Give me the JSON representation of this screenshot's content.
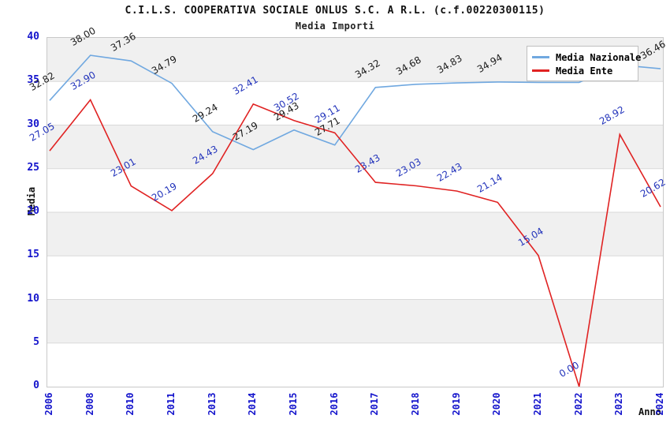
{
  "title": "C.I.L.S. COOPERATIVA SOCIALE ONLUS S.C. A R.L. (c.f.00220300115)",
  "subtitle": "Media Importi",
  "axes": {
    "x_label": "Anno",
    "y_label": "Media",
    "y_ticks": [
      0,
      5,
      10,
      15,
      20,
      25,
      30,
      35,
      40
    ],
    "ylim": [
      0,
      40
    ]
  },
  "colors": {
    "nazionale_line": "#70a8e0",
    "ente_line": "#e02222",
    "nazionale_value_label": "#1a1a1a",
    "ente_value_label": "#2233bb",
    "axis_tick_text": "#1414cc",
    "band_gray": "#f0f0f0",
    "grid_line": "#d9d9d9"
  },
  "chart_data": {
    "type": "line",
    "title": "C.I.L.S. COOPERATIVA SOCIALE ONLUS S.C. A R.L. (c.f.00220300115)",
    "subtitle": "Media Importi",
    "xlabel": "Anno",
    "ylabel": "Media",
    "ylim": [
      0,
      40
    ],
    "grid": true,
    "legend_position": "top-right",
    "categories": [
      "2006",
      "2008",
      "2010",
      "2011",
      "2013",
      "2014",
      "2015",
      "2016",
      "2017",
      "2018",
      "2019",
      "2020",
      "2021",
      "2022",
      "2023",
      "2024"
    ],
    "series": [
      {
        "name": "Media Nazionale",
        "color": "#70a8e0",
        "label_color": "#1a1a1a",
        "values": [
          32.82,
          38.0,
          37.36,
          34.79,
          29.24,
          27.19,
          29.43,
          27.71,
          34.32,
          34.68,
          34.83,
          34.94,
          34.9,
          34.9,
          36.9,
          36.46
        ],
        "labels": [
          "32.82",
          "38.00",
          "37.36",
          "34.79",
          "29.24",
          "27.19",
          "29.43",
          "27.71",
          "34.32",
          "34.68",
          "34.83",
          "34.94",
          null,
          null,
          null,
          "36.46"
        ]
      },
      {
        "name": "Media Ente",
        "color": "#e02222",
        "label_color": "#2233bb",
        "values": [
          27.05,
          32.9,
          23.01,
          20.19,
          24.43,
          32.41,
          30.52,
          29.11,
          23.43,
          23.03,
          22.43,
          21.14,
          15.04,
          0.0,
          28.92,
          20.62
        ],
        "labels": [
          "27.05",
          "32.90",
          "23.01",
          "20.19",
          "24.43",
          "32.41",
          "30.52",
          "29.11",
          "23.43",
          "23.03",
          "22.43",
          "21.14",
          "15.04",
          "0.00",
          "28.92",
          "20.62"
        ]
      }
    ]
  }
}
